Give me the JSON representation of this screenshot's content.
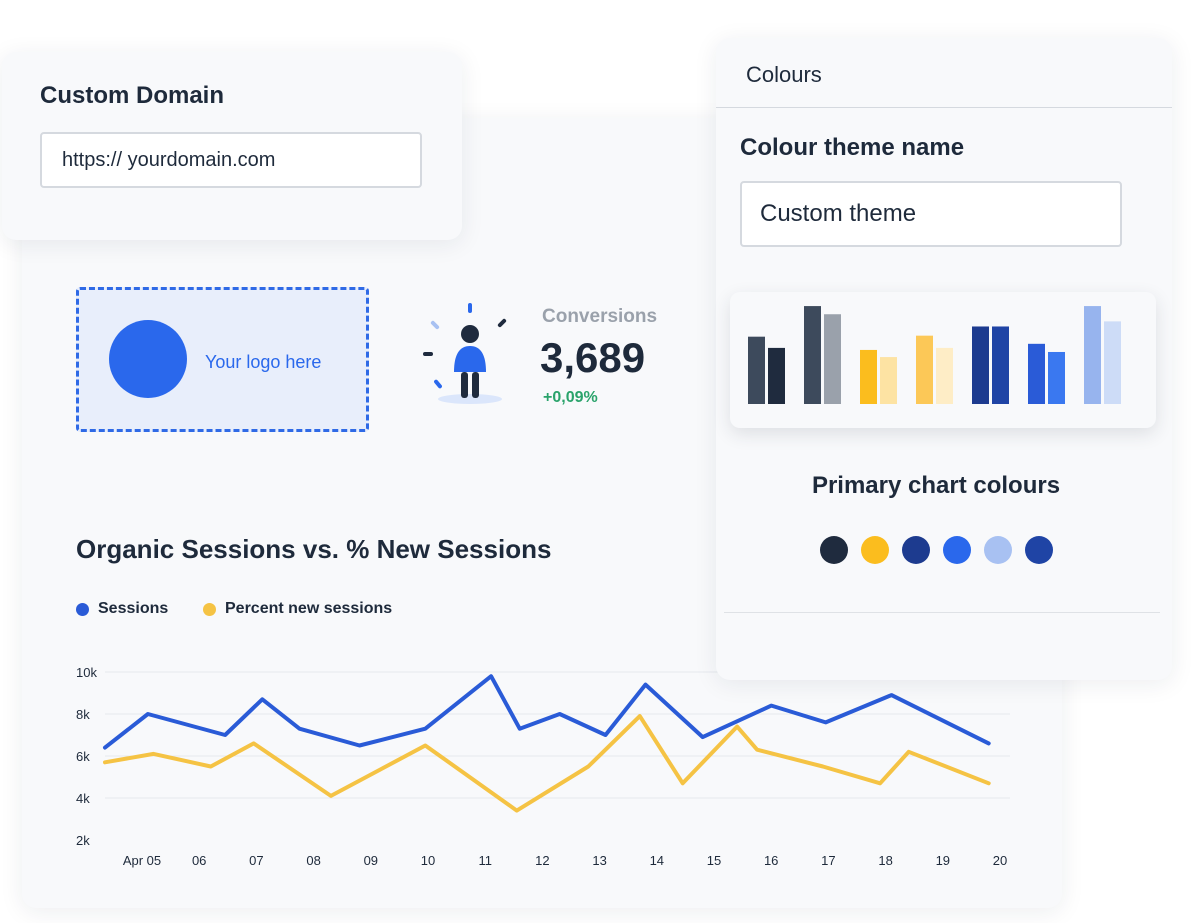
{
  "custom_domain": {
    "title": "Custom Domain",
    "input_value": "https:// yourdomain.com"
  },
  "logo": {
    "placeholder_text": "Your logo here",
    "circle_color": "#2a68ec"
  },
  "conversions": {
    "label": "Conversions",
    "value": "3,689",
    "change": "+0,09%",
    "icon": "person-idea-icon"
  },
  "line_chart_title": "Organic Sessions vs. % New Sessions",
  "legend": {
    "sessions": "Sessions",
    "percent": "Percent new sessions"
  },
  "chart_data": {
    "type": "line",
    "title": "Organic Sessions vs. % New Sessions",
    "xlabel": "",
    "ylabel": "",
    "categories": [
      "Apr 05",
      "06",
      "07",
      "08",
      "09",
      "10",
      "11",
      "12",
      "13",
      "14",
      "15",
      "16",
      "17",
      "18",
      "19",
      "20"
    ],
    "y_ticks": [
      "10k",
      "8k",
      "6k",
      "4k",
      "2k"
    ],
    "ylim": [
      2000,
      10000
    ],
    "grid": true,
    "legend_position": "top-left",
    "series": [
      {
        "name": "Sessions",
        "color": "#2a5bd7",
        "points": [
          [
            0,
            6400
          ],
          [
            0.75,
            8000
          ],
          [
            2.1,
            7000
          ],
          [
            2.75,
            8700
          ],
          [
            3.4,
            7300
          ],
          [
            4.45,
            6500
          ],
          [
            5.6,
            7300
          ],
          [
            6.75,
            9800
          ],
          [
            7.25,
            7300
          ],
          [
            7.95,
            8000
          ],
          [
            8.75,
            7000
          ],
          [
            9.45,
            9400
          ],
          [
            10.45,
            6900
          ],
          [
            11.65,
            8400
          ],
          [
            12.6,
            7600
          ],
          [
            13.75,
            8900
          ],
          [
            15.45,
            6600
          ]
        ]
      },
      {
        "name": "Percent new sessions",
        "color": "#f5c344",
        "points": [
          [
            0,
            5700
          ],
          [
            0.85,
            6100
          ],
          [
            1.85,
            5500
          ],
          [
            2.6,
            6600
          ],
          [
            3.95,
            4100
          ],
          [
            5.6,
            6500
          ],
          [
            7.2,
            3400
          ],
          [
            8.45,
            5500
          ],
          [
            9.35,
            7900
          ],
          [
            10.1,
            4700
          ],
          [
            11.05,
            7400
          ],
          [
            11.4,
            6300
          ],
          [
            12.55,
            5500
          ],
          [
            13.55,
            4700
          ],
          [
            14.05,
            6200
          ],
          [
            15.45,
            4700
          ]
        ]
      }
    ]
  },
  "colours_panel": {
    "heading": "Colours",
    "theme_name_label": "Colour theme name",
    "theme_name_value": "Custom theme",
    "primary_label": "Primary chart colours",
    "swatches": [
      "#1f2b3e",
      "#fbbd1e",
      "#1d3b8f",
      "#2a68ec",
      "#a8c1f2",
      "#1f44a5"
    ],
    "bar_preview": [
      {
        "level": 0.66,
        "color": "#3d4a5c"
      },
      {
        "level": 0.55,
        "color": "#1f2b3e"
      },
      {
        "level": 0.96,
        "color": "#3d4a5c"
      },
      {
        "level": 0.88,
        "color": "#9aa1ab"
      },
      {
        "level": 0.53,
        "color": "#fbbd1e"
      },
      {
        "level": 0.46,
        "color": "#fde3a3"
      },
      {
        "level": 0.67,
        "color": "#fcc857"
      },
      {
        "level": 0.55,
        "color": "#feedc6"
      },
      {
        "level": 0.76,
        "color": "#1d3b8f"
      },
      {
        "level": 0.76,
        "color": "#1f44a5"
      },
      {
        "level": 0.59,
        "color": "#2a5bd7"
      },
      {
        "level": 0.51,
        "color": "#3a78f0"
      },
      {
        "level": 0.96,
        "color": "#97b4ee"
      },
      {
        "level": 0.81,
        "color": "#cddcf7"
      }
    ]
  }
}
